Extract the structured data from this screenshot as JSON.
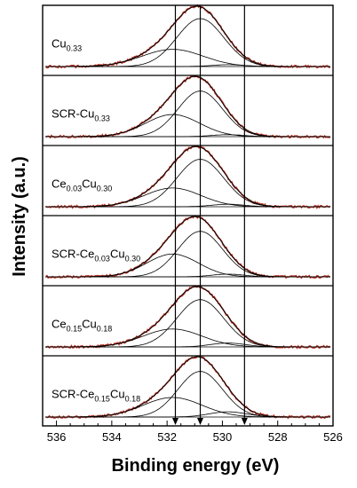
{
  "chart_data": {
    "type": "line",
    "title": "",
    "xlabel": "Binding energy (eV)",
    "ylabel": "Intensity (a.u.)",
    "xlim": [
      536.5,
      526
    ],
    "x_reversed": true,
    "x_ticks": [
      536,
      534,
      532,
      530,
      528,
      526
    ],
    "grid": false,
    "reference_lines_eV": [
      531.7,
      530.8,
      529.2
    ],
    "panels": [
      {
        "label_parts": [
          {
            "t": "Cu",
            "sub": false
          },
          {
            "t": "0.33",
            "sub": true
          }
        ],
        "peak_height": 0.86,
        "components": [
          {
            "center": 530.8,
            "fwhm": 2.0,
            "height": 0.78
          },
          {
            "center": 531.8,
            "fwhm": 2.6,
            "height": 0.28
          },
          {
            "center": 529.8,
            "fwhm": 1.4,
            "height": 0.03
          }
        ]
      },
      {
        "label_parts": [
          {
            "t": "SCR-Cu",
            "sub": false
          },
          {
            "t": "0.33",
            "sub": true
          }
        ],
        "peak_height": 0.86,
        "components": [
          {
            "center": 530.8,
            "fwhm": 1.9,
            "height": 0.7
          },
          {
            "center": 531.8,
            "fwhm": 2.3,
            "height": 0.34
          },
          {
            "center": 529.8,
            "fwhm": 1.4,
            "height": 0.03
          }
        ]
      },
      {
        "label_parts": [
          {
            "t": "Ce",
            "sub": false
          },
          {
            "t": "0.03",
            "sub": true
          },
          {
            "t": "Cu",
            "sub": false
          },
          {
            "t": "0.30",
            "sub": true
          }
        ],
        "peak_height": 0.86,
        "components": [
          {
            "center": 530.8,
            "fwhm": 2.0,
            "height": 0.76
          },
          {
            "center": 531.8,
            "fwhm": 2.4,
            "height": 0.3
          },
          {
            "center": 529.8,
            "fwhm": 1.4,
            "height": 0.04
          }
        ]
      },
      {
        "label_parts": [
          {
            "t": "SCR-Ce",
            "sub": false
          },
          {
            "t": "0.03",
            "sub": true
          },
          {
            "t": "Cu",
            "sub": false
          },
          {
            "t": "0.30",
            "sub": true
          }
        ],
        "peak_height": 0.86,
        "components": [
          {
            "center": 530.8,
            "fwhm": 1.9,
            "height": 0.68
          },
          {
            "center": 531.8,
            "fwhm": 2.2,
            "height": 0.34
          },
          {
            "center": 529.8,
            "fwhm": 1.4,
            "height": 0.04
          }
        ]
      },
      {
        "label_parts": [
          {
            "t": "Ce",
            "sub": false
          },
          {
            "t": "0.15",
            "sub": true
          },
          {
            "t": "Cu",
            "sub": false
          },
          {
            "t": "0.18",
            "sub": true
          }
        ],
        "peak_height": 0.86,
        "components": [
          {
            "center": 530.8,
            "fwhm": 2.0,
            "height": 0.74
          },
          {
            "center": 531.8,
            "fwhm": 2.5,
            "height": 0.28
          },
          {
            "center": 529.8,
            "fwhm": 1.5,
            "height": 0.06
          }
        ]
      },
      {
        "label_parts": [
          {
            "t": "SCR-Ce",
            "sub": false
          },
          {
            "t": "0.15",
            "sub": true
          },
          {
            "t": "Cu",
            "sub": false
          },
          {
            "t": "0.18",
            "sub": true
          }
        ],
        "peak_height": 0.86,
        "components": [
          {
            "center": 530.8,
            "fwhm": 1.9,
            "height": 0.7
          },
          {
            "center": 531.8,
            "fwhm": 2.5,
            "height": 0.3
          },
          {
            "center": 529.8,
            "fwhm": 1.6,
            "height": 0.08
          }
        ]
      }
    ],
    "colors": {
      "envelope": "#000000",
      "measured": "#c0392b",
      "components": "#000000",
      "axis": "#000000"
    }
  }
}
